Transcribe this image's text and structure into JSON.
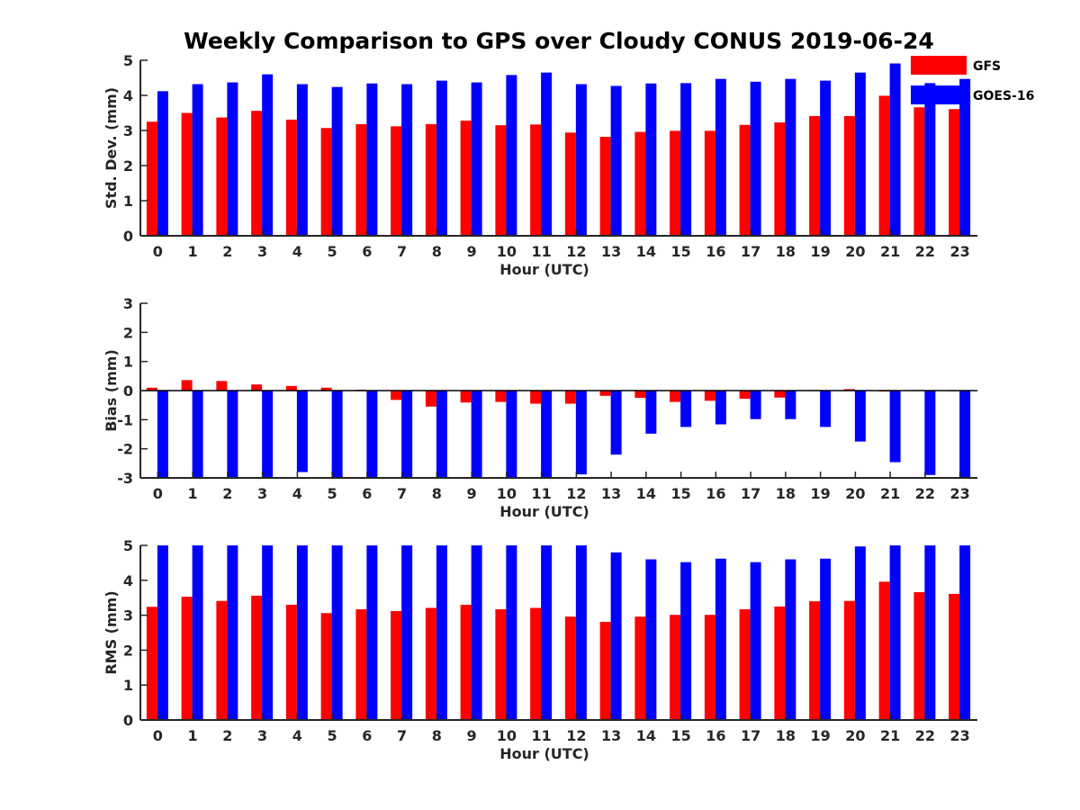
{
  "title": "Weekly Comparison to GPS over Cloudy CONUS 2019-06-24",
  "colors": {
    "GFS": "#ff0000",
    "GOES-16": "#0000ff"
  },
  "chart_data": [
    {
      "type": "bar",
      "xlabel": "Hour (UTC)",
      "ylabel": "Std. Dev. (mm)",
      "ylim": [
        0,
        5
      ],
      "yticks": [
        0,
        1,
        2,
        3,
        4,
        5
      ],
      "categories": [
        "0",
        "1",
        "2",
        "3",
        "4",
        "5",
        "6",
        "7",
        "8",
        "9",
        "10",
        "11",
        "12",
        "13",
        "14",
        "15",
        "16",
        "17",
        "18",
        "19",
        "20",
        "21",
        "22",
        "23"
      ],
      "legend": "top-right",
      "series": [
        {
          "name": "GFS",
          "values": [
            3.25,
            3.5,
            3.37,
            3.56,
            3.31,
            3.07,
            3.18,
            3.12,
            3.18,
            3.28,
            3.15,
            3.17,
            2.94,
            2.82,
            2.96,
            2.99,
            2.99,
            3.16,
            3.23,
            3.41,
            3.41,
            3.99,
            3.66,
            3.61
          ]
        },
        {
          "name": "GOES-16",
          "values": [
            4.12,
            4.32,
            4.37,
            4.6,
            4.32,
            4.24,
            4.34,
            4.32,
            4.42,
            4.37,
            4.58,
            4.65,
            4.32,
            4.27,
            4.34,
            4.35,
            4.47,
            4.39,
            4.47,
            4.42,
            4.65,
            4.91,
            4.35,
            4.47
          ]
        }
      ]
    },
    {
      "type": "bar",
      "xlabel": "Hour (UTC)",
      "ylabel": "Bias (mm)",
      "ylim": [
        -3,
        3
      ],
      "yticks": [
        -3,
        -2,
        -1,
        0,
        1,
        2,
        3
      ],
      "categories": [
        "0",
        "1",
        "2",
        "3",
        "4",
        "5",
        "6",
        "7",
        "8",
        "9",
        "10",
        "11",
        "12",
        "13",
        "14",
        "15",
        "16",
        "17",
        "18",
        "19",
        "20",
        "21",
        "22",
        "23"
      ],
      "series": [
        {
          "name": "GFS",
          "values": [
            0.1,
            0.36,
            0.33,
            0.21,
            0.16,
            0.1,
            0.03,
            -0.32,
            -0.55,
            -0.41,
            -0.39,
            -0.45,
            -0.45,
            -0.18,
            -0.25,
            -0.39,
            -0.35,
            -0.28,
            -0.24,
            0.02,
            0.05,
            -0.03,
            0.02,
            -0.02
          ]
        },
        {
          "name": "GOES-16",
          "values": [
            -3.0,
            -3.0,
            -3.0,
            -2.97,
            -2.8,
            -3.0,
            -3.0,
            -3.0,
            -3.0,
            -3.0,
            -3.0,
            -3.0,
            -2.88,
            -2.2,
            -1.48,
            -1.25,
            -1.16,
            -0.98,
            -0.98,
            -1.25,
            -1.75,
            -2.46,
            -2.9,
            -3.0
          ]
        }
      ]
    },
    {
      "type": "bar",
      "xlabel": "Hour (UTC)",
      "ylabel": "RMS (mm)",
      "ylim": [
        0,
        5
      ],
      "yticks": [
        0,
        1,
        2,
        3,
        4,
        5
      ],
      "categories": [
        "0",
        "1",
        "2",
        "3",
        "4",
        "5",
        "6",
        "7",
        "8",
        "9",
        "10",
        "11",
        "12",
        "13",
        "14",
        "15",
        "16",
        "17",
        "18",
        "19",
        "20",
        "21",
        "22",
        "23"
      ],
      "series": [
        {
          "name": "GFS",
          "values": [
            3.24,
            3.53,
            3.41,
            3.56,
            3.3,
            3.06,
            3.17,
            3.12,
            3.21,
            3.3,
            3.17,
            3.21,
            2.96,
            2.81,
            2.96,
            3.01,
            3.01,
            3.17,
            3.25,
            3.4,
            3.41,
            3.96,
            3.66,
            3.61
          ]
        },
        {
          "name": "GOES-16",
          "values": [
            5.0,
            5.0,
            5.0,
            5.0,
            5.0,
            5.0,
            5.0,
            5.0,
            5.0,
            5.0,
            5.0,
            5.0,
            5.0,
            4.8,
            4.6,
            4.52,
            4.62,
            4.52,
            4.6,
            4.62,
            4.97,
            5.0,
            5.0,
            5.0
          ]
        }
      ]
    }
  ]
}
